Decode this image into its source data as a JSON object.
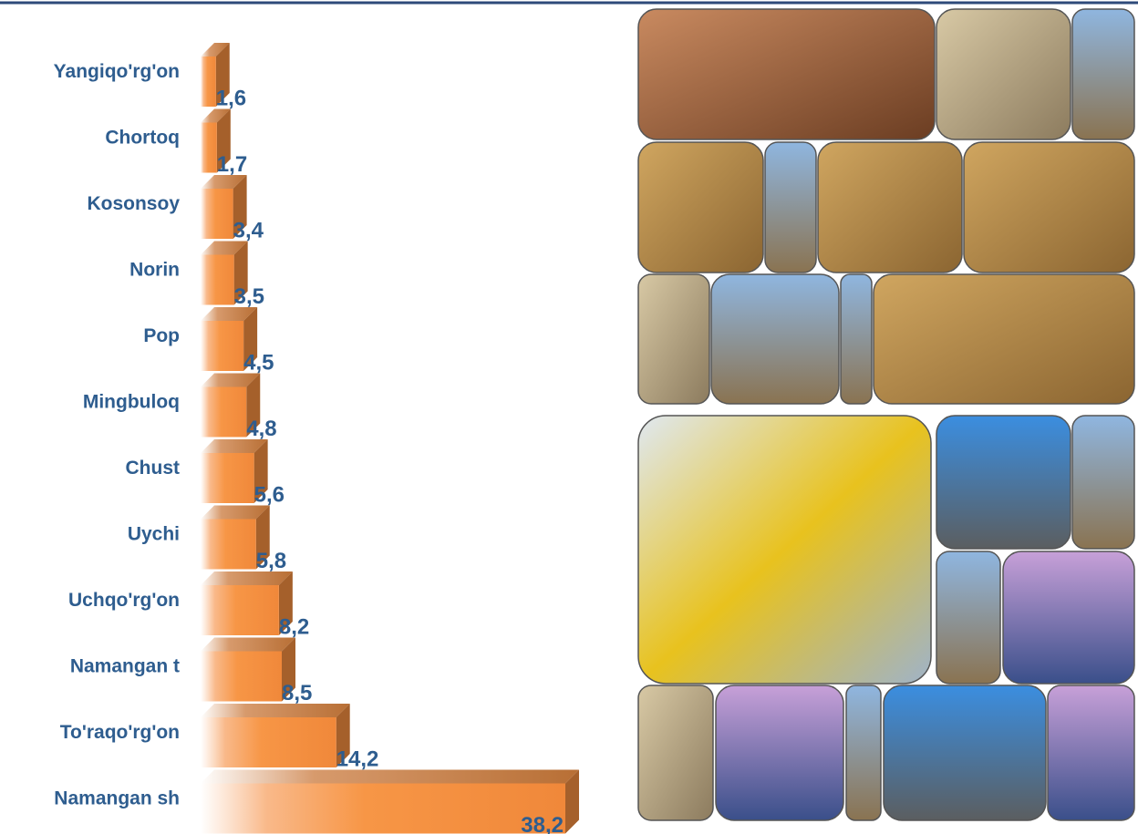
{
  "chart_data": {
    "type": "bar",
    "orientation": "horizontal",
    "categories": [
      "Yangiqo'rg'on",
      "Chortoq",
      "Kosonsoy",
      "Norin",
      "Pop",
      "Mingbuloq",
      "Chust",
      "Uychi",
      "Uchqo'rg'on",
      "Namangan t",
      "To'raqo'rg'on",
      "Namangan sh"
    ],
    "values": [
      1.6,
      1.7,
      3.4,
      3.5,
      4.5,
      4.8,
      5.6,
      5.8,
      8.2,
      8.5,
      14.2,
      38.2
    ],
    "value_labels": [
      "1,6",
      "1,7",
      "3,4",
      "3,5",
      "4,5",
      "4,8",
      "5,6",
      "5,8",
      "8,2",
      "8,5",
      "14,2",
      "38,2"
    ],
    "color": "#f79646"
  }
}
